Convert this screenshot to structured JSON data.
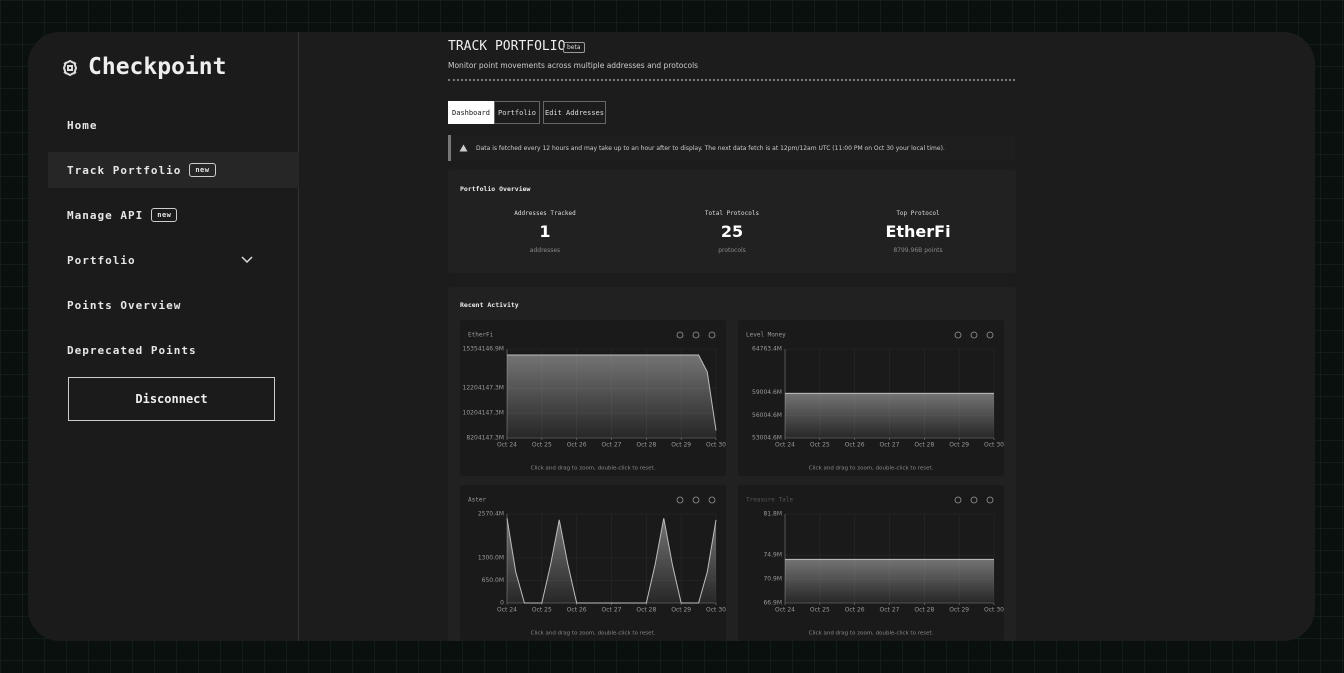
{
  "sidebar": {
    "logo": "Checkpoint",
    "nav": [
      {
        "label": "Home"
      },
      {
        "label": "Track Portfolio",
        "badge": "new"
      },
      {
        "label": "Manage API",
        "badge": "new"
      },
      {
        "label": "Portfolio"
      },
      {
        "label": "Points Overview"
      },
      {
        "label": "Deprecated Points"
      }
    ],
    "disconnect": "Disconnect"
  },
  "header": {
    "title": "TRACK PORTFOLIO",
    "badge": "beta",
    "subtitle": "Monitor point movements across multiple addresses and protocols"
  },
  "tabs": [
    "Dashboard",
    "Portfolio",
    "Edit Addresses"
  ],
  "notice": "Data is fetched every 12 hours and may take up to an hour after to display. The next data fetch is at 12pm/12am UTC (11:00 PM on Oct 30 your local time).",
  "overview": {
    "title": "Portfolio Overview",
    "stats": [
      {
        "label": "Addresses Tracked",
        "value": 1,
        "unit": "addresses"
      },
      {
        "label": "Total Protocols",
        "value": 25,
        "unit": "protocols"
      },
      {
        "label": "Top Protocol",
        "value": "EtherFi",
        "unit": "8799.96B points"
      }
    ]
  },
  "recent_activity": {
    "title": "Recent Activity",
    "hint": "Click and drag to zoom, double-click to reset."
  },
  "chart_data": [
    {
      "type": "area",
      "title": "EtherFi",
      "color": "#bdbdbd",
      "x": [
        24,
        24.5,
        25,
        25.5,
        26,
        26.5,
        27,
        27.5,
        28,
        28.5,
        29,
        29.5,
        29.75,
        30
      ],
      "values": [
        14870000,
        14870000,
        14870000,
        14870000,
        14870000,
        14870000,
        14870000,
        14870000,
        14870000,
        14870000,
        14870000,
        14870000,
        13500000,
        8800000
      ],
      "xlim": [
        24,
        30
      ],
      "xticks": [
        {
          "value": 24,
          "label": "Oct 24"
        },
        {
          "value": 25,
          "label": "Oct 25"
        },
        {
          "value": 26,
          "label": "Oct 26"
        },
        {
          "value": 27,
          "label": "Oct 27"
        },
        {
          "value": 28,
          "label": "Oct 28"
        },
        {
          "value": 29,
          "label": "Oct 29"
        },
        {
          "value": 30,
          "label": "Oct 30"
        }
      ],
      "ylim": [
        8204147.3,
        15354146.9
      ],
      "yticks": [
        {
          "value": 15354146.9,
          "label": "15354146.9M"
        },
        {
          "value": 12204147.3,
          "label": "12204147.3M"
        },
        {
          "value": 10204147.3,
          "label": "10204147.3M"
        },
        {
          "value": 8204147.3,
          "label": "8204147.3M"
        }
      ],
      "grid": true
    },
    {
      "type": "area",
      "title": "Level Money",
      "color": "#bdbdbd",
      "x": [
        24,
        25,
        26,
        27,
        28,
        29,
        30
      ],
      "values": [
        58900,
        58900,
        58900,
        58900,
        58900,
        58900,
        58900
      ],
      "xlim": [
        24,
        30
      ],
      "xticks": [
        {
          "value": 24,
          "label": "Oct 24"
        },
        {
          "value": 25,
          "label": "Oct 25"
        },
        {
          "value": 26,
          "label": "Oct 26"
        },
        {
          "value": 27,
          "label": "Oct 27"
        },
        {
          "value": 28,
          "label": "Oct 28"
        },
        {
          "value": 29,
          "label": "Oct 29"
        },
        {
          "value": 30,
          "label": "Oct 30"
        }
      ],
      "ylim": [
        53004.6,
        64763.4
      ],
      "yticks": [
        {
          "value": 64763.4,
          "label": "64763.4M"
        },
        {
          "value": 59004.6,
          "label": "59004.6M"
        },
        {
          "value": 56004.6,
          "label": "56004.6M"
        },
        {
          "value": 53004.6,
          "label": "53004.6M"
        }
      ],
      "grid": true
    },
    {
      "type": "area",
      "title": "Aster",
      "color": "#bdbdbd",
      "x": [
        24,
        24.25,
        24.5,
        24.75,
        25,
        25.25,
        25.5,
        25.75,
        26,
        26.25,
        26.5,
        26.75,
        27,
        27.25,
        27.5,
        27.75,
        28,
        28.25,
        28.5,
        28.75,
        29,
        29.25,
        29.5,
        29.75,
        30
      ],
      "values": [
        2450,
        900,
        0,
        0,
        0,
        1100,
        2400,
        1100,
        0,
        0,
        0,
        0,
        0,
        0,
        0,
        0,
        0,
        1100,
        2450,
        1100,
        0,
        0,
        0,
        900,
        2400
      ],
      "xlim": [
        24,
        30
      ],
      "xticks": [
        {
          "value": 24,
          "label": "Oct 24"
        },
        {
          "value": 25,
          "label": "Oct 25"
        },
        {
          "value": 26,
          "label": "Oct 26"
        },
        {
          "value": 27,
          "label": "Oct 27"
        },
        {
          "value": 28,
          "label": "Oct 28"
        },
        {
          "value": 29,
          "label": "Oct 29"
        },
        {
          "value": 30,
          "label": "Oct 30"
        }
      ],
      "ylim": [
        0,
        2570.4
      ],
      "yticks": [
        {
          "value": 2570.4,
          "label": "2570.4M"
        },
        {
          "value": 1300,
          "label": "1300.0M"
        },
        {
          "value": 650,
          "label": "650.0M"
        },
        0
      ],
      "grid": true
    },
    {
      "type": "area",
      "title": "Treasure Tale",
      "color": "#bdbdbd",
      "x": [
        24,
        25,
        26,
        27,
        28,
        29,
        30
      ],
      "values": [
        74.2,
        74.2,
        74.2,
        74.2,
        74.2,
        74.2,
        74.2
      ],
      "xlim": [
        24,
        30
      ],
      "xticks": [
        {
          "value": 24,
          "label": "Oct 24"
        },
        {
          "value": 25,
          "label": "Oct 25"
        },
        {
          "value": 26,
          "label": "Oct 26"
        },
        {
          "value": 27,
          "label": "Oct 27"
        },
        {
          "value": 28,
          "label": "Oct 28"
        },
        {
          "value": 29,
          "label": "Oct 29"
        },
        {
          "value": 30,
          "label": "Oct 30"
        }
      ],
      "ylim": [
        66.9,
        81.8
      ],
      "yticks": [
        {
          "value": 81.8,
          "label": "81.8M"
        },
        {
          "value": 74.9,
          "label": "74.9M"
        },
        {
          "value": 70.9,
          "label": "70.9M"
        },
        {
          "value": 66.9,
          "label": "66.9M"
        }
      ],
      "grid": true
    }
  ]
}
